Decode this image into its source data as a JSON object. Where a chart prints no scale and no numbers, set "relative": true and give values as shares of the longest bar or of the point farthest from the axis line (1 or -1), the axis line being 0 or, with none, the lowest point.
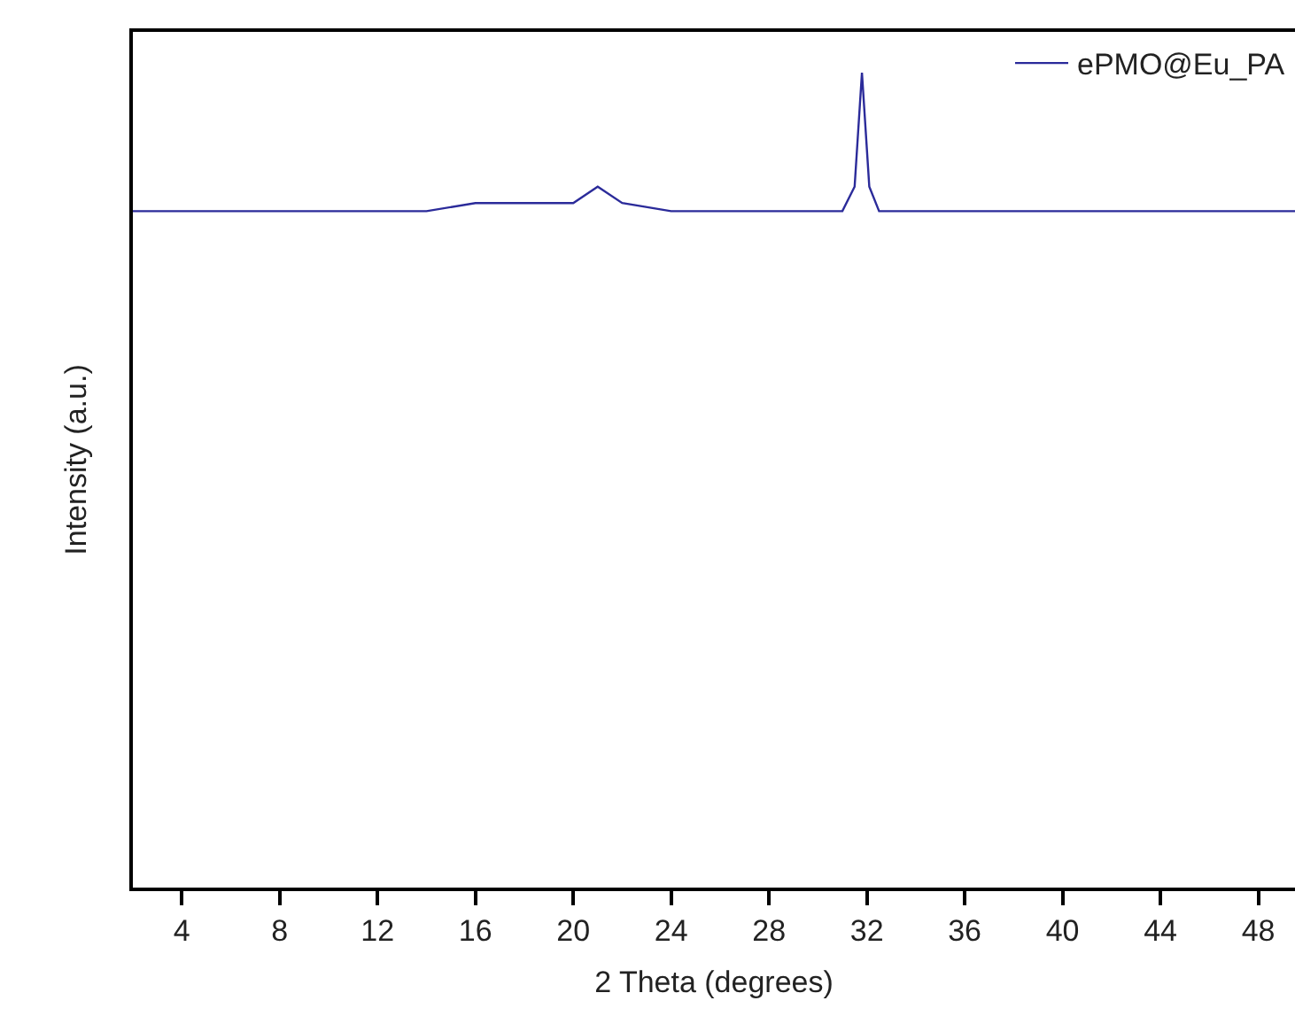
{
  "chart_data": {
    "type": "line",
    "xlabel": "2 Theta (degrees)",
    "ylabel": "Intensity (a.u.)",
    "relative": true,
    "xlim": [
      2,
      49.5
    ],
    "xticks": [
      4,
      8,
      12,
      16,
      20,
      24,
      28,
      32,
      36,
      40,
      44,
      48
    ],
    "legend": "top right",
    "grid": false,
    "marker": "none",
    "line_style": "solid",
    "series": [
      {
        "name": "ePMO@Eu_PA",
        "color": "#2b2b9a",
        "x": [
          2,
          4,
          6,
          8,
          10,
          12,
          14,
          16,
          18,
          20,
          21,
          22,
          24,
          26,
          28,
          29,
          30,
          31,
          31.5,
          31.8,
          32.1,
          32.5,
          34,
          36,
          38,
          40,
          42,
          44,
          46,
          48,
          49.5
        ],
        "values": [
          0.83,
          0.83,
          0.83,
          0.83,
          0.83,
          0.83,
          0.83,
          0.84,
          0.84,
          0.84,
          0.86,
          0.84,
          0.83,
          0.83,
          0.83,
          0.83,
          0.83,
          0.83,
          0.86,
          1,
          0.86,
          0.83,
          0.83,
          0.83,
          0.83,
          0.83,
          0.83,
          0.83,
          0.83,
          0.83,
          0.83
        ]
      }
    ]
  }
}
